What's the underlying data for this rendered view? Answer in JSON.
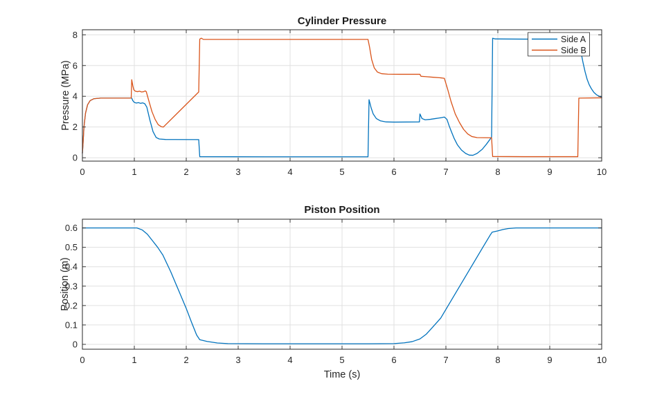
{
  "figure": {
    "background": "#ffffff",
    "colors": {
      "side_a": "#0072BD",
      "side_b": "#D95319",
      "axis": "#262626",
      "grid": "#e0e0e0",
      "tick_label": "#262626"
    }
  },
  "chart_data": [
    {
      "type": "line",
      "title": "Cylinder Pressure",
      "xlabel": "",
      "ylabel": "Pressure (MPa)",
      "xlim": [
        0,
        10
      ],
      "ylim": [
        -0.22,
        8.33
      ],
      "xticks": [
        0,
        1,
        2,
        3,
        4,
        5,
        6,
        7,
        8,
        9,
        10
      ],
      "yticks": [
        0,
        2,
        4,
        6,
        8
      ],
      "grid": true,
      "legend": {
        "position": "northeast",
        "entries": [
          "Side A",
          "Side B"
        ]
      },
      "series": [
        {
          "name": "Side A",
          "color": "#0072BD",
          "points": [
            [
              0,
              0.3
            ],
            [
              0.01,
              0.8
            ],
            [
              0.03,
              2.0
            ],
            [
              0.06,
              2.9
            ],
            [
              0.1,
              3.45
            ],
            [
              0.15,
              3.72
            ],
            [
              0.22,
              3.84
            ],
            [
              0.35,
              3.88
            ],
            [
              0.95,
              3.88
            ],
            [
              0.97,
              3.72
            ],
            [
              1.0,
              3.6
            ],
            [
              1.04,
              3.56
            ],
            [
              1.08,
              3.59
            ],
            [
              1.12,
              3.54
            ],
            [
              1.16,
              3.57
            ],
            [
              1.2,
              3.52
            ],
            [
              1.24,
              3.3
            ],
            [
              1.3,
              2.45
            ],
            [
              1.36,
              1.7
            ],
            [
              1.42,
              1.32
            ],
            [
              1.48,
              1.22
            ],
            [
              1.6,
              1.19
            ],
            [
              2.24,
              1.18
            ],
            [
              2.26,
              0.07
            ],
            [
              4.0,
              0.06
            ],
            [
              5.5,
              0.06
            ],
            [
              5.52,
              3.78
            ],
            [
              5.56,
              3.25
            ],
            [
              5.6,
              2.85
            ],
            [
              5.66,
              2.55
            ],
            [
              5.74,
              2.4
            ],
            [
              5.85,
              2.33
            ],
            [
              6.0,
              2.32
            ],
            [
              6.49,
              2.33
            ],
            [
              6.5,
              2.85
            ],
            [
              6.54,
              2.55
            ],
            [
              6.6,
              2.47
            ],
            [
              6.7,
              2.5
            ],
            [
              6.8,
              2.55
            ],
            [
              6.9,
              2.6
            ],
            [
              6.97,
              2.65
            ],
            [
              7.02,
              2.5
            ],
            [
              7.06,
              2.1
            ],
            [
              7.1,
              1.75
            ],
            [
              7.16,
              1.25
            ],
            [
              7.22,
              0.85
            ],
            [
              7.3,
              0.5
            ],
            [
              7.38,
              0.28
            ],
            [
              7.45,
              0.17
            ],
            [
              7.52,
              0.16
            ],
            [
              7.6,
              0.28
            ],
            [
              7.7,
              0.55
            ],
            [
              7.78,
              0.88
            ],
            [
              7.85,
              1.2
            ],
            [
              7.88,
              1.35
            ],
            [
              7.9,
              7.78
            ],
            [
              7.95,
              7.73
            ],
            [
              8.5,
              7.72
            ],
            [
              9.2,
              7.72
            ],
            [
              9.56,
              7.7
            ],
            [
              9.6,
              6.9
            ],
            [
              9.64,
              6.2
            ],
            [
              9.68,
              5.6
            ],
            [
              9.72,
              5.1
            ],
            [
              9.76,
              4.75
            ],
            [
              9.8,
              4.5
            ],
            [
              9.85,
              4.25
            ],
            [
              9.9,
              4.1
            ],
            [
              9.95,
              4.0
            ],
            [
              10,
              3.95
            ]
          ]
        },
        {
          "name": "Side B",
          "color": "#D95319",
          "points": [
            [
              0,
              0.3
            ],
            [
              0.01,
              0.8
            ],
            [
              0.03,
              2.0
            ],
            [
              0.06,
              2.9
            ],
            [
              0.1,
              3.45
            ],
            [
              0.15,
              3.72
            ],
            [
              0.22,
              3.84
            ],
            [
              0.35,
              3.88
            ],
            [
              0.94,
              3.88
            ],
            [
              0.95,
              5.08
            ],
            [
              0.97,
              4.7
            ],
            [
              0.99,
              4.42
            ],
            [
              1.02,
              4.33
            ],
            [
              1.06,
              4.3
            ],
            [
              1.1,
              4.33
            ],
            [
              1.14,
              4.28
            ],
            [
              1.18,
              4.3
            ],
            [
              1.21,
              4.35
            ],
            [
              1.23,
              4.3
            ],
            [
              1.28,
              3.7
            ],
            [
              1.34,
              3.0
            ],
            [
              1.4,
              2.5
            ],
            [
              1.46,
              2.15
            ],
            [
              1.52,
              2.02
            ],
            [
              1.56,
              2.0
            ],
            [
              2.24,
              4.28
            ],
            [
              2.26,
              7.72
            ],
            [
              2.29,
              7.78
            ],
            [
              2.33,
              7.7
            ],
            [
              4.0,
              7.7
            ],
            [
              5.5,
              7.7
            ],
            [
              5.53,
              7.2
            ],
            [
              5.57,
              6.4
            ],
            [
              5.62,
              5.85
            ],
            [
              5.68,
              5.58
            ],
            [
              5.76,
              5.47
            ],
            [
              5.88,
              5.44
            ],
            [
              6.1,
              5.43
            ],
            [
              6.5,
              5.43
            ],
            [
              6.52,
              5.3
            ],
            [
              6.6,
              5.28
            ],
            [
              6.75,
              5.24
            ],
            [
              6.9,
              5.2
            ],
            [
              6.97,
              5.17
            ],
            [
              7.03,
              4.5
            ],
            [
              7.1,
              3.65
            ],
            [
              7.18,
              2.85
            ],
            [
              7.26,
              2.3
            ],
            [
              7.34,
              1.85
            ],
            [
              7.42,
              1.55
            ],
            [
              7.5,
              1.38
            ],
            [
              7.6,
              1.31
            ],
            [
              7.88,
              1.3
            ],
            [
              7.9,
              0.08
            ],
            [
              8.5,
              0.07
            ],
            [
              9.54,
              0.07
            ],
            [
              9.56,
              3.88
            ],
            [
              10,
              3.9
            ]
          ]
        }
      ]
    },
    {
      "type": "line",
      "title": "Piston Position",
      "xlabel": "Time (s)",
      "ylabel": "Position (m)",
      "xlim": [
        0,
        10
      ],
      "ylim": [
        -0.025,
        0.645
      ],
      "xticks": [
        0,
        1,
        2,
        3,
        4,
        5,
        6,
        7,
        8,
        9,
        10
      ],
      "yticks": [
        0,
        0.1,
        0.2,
        0.3,
        0.4,
        0.5,
        0.6
      ],
      "grid": true,
      "series": [
        {
          "name": "Position",
          "color": "#0072BD",
          "points": [
            [
              0,
              0.6
            ],
            [
              1.05,
              0.6
            ],
            [
              1.15,
              0.59
            ],
            [
              1.25,
              0.568
            ],
            [
              1.35,
              0.534
            ],
            [
              1.45,
              0.5
            ],
            [
              1.55,
              0.46
            ],
            [
              1.7,
              0.375
            ],
            [
              1.85,
              0.28
            ],
            [
              2.0,
              0.185
            ],
            [
              2.1,
              0.115
            ],
            [
              2.2,
              0.048
            ],
            [
              2.26,
              0.024
            ],
            [
              2.4,
              0.015
            ],
            [
              2.6,
              0.007
            ],
            [
              2.8,
              0.004
            ],
            [
              3.5,
              0.003
            ],
            [
              5.5,
              0.003
            ],
            [
              6.0,
              0.004
            ],
            [
              6.2,
              0.008
            ],
            [
              6.35,
              0.014
            ],
            [
              6.5,
              0.028
            ],
            [
              6.62,
              0.052
            ],
            [
              6.75,
              0.09
            ],
            [
              6.9,
              0.135
            ],
            [
              7.1,
              0.225
            ],
            [
              7.3,
              0.315
            ],
            [
              7.5,
              0.405
            ],
            [
              7.7,
              0.495
            ],
            [
              7.85,
              0.562
            ],
            [
              7.89,
              0.578
            ],
            [
              8.0,
              0.585
            ],
            [
              8.1,
              0.592
            ],
            [
              8.2,
              0.597
            ],
            [
              8.35,
              0.6
            ],
            [
              10,
              0.6
            ]
          ]
        }
      ]
    }
  ]
}
